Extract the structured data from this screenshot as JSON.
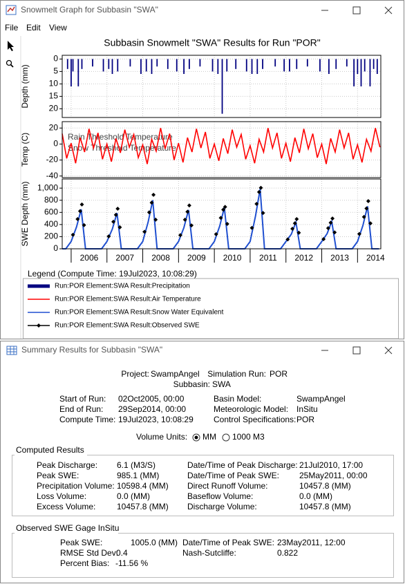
{
  "graph_window": {
    "title": "Snowmelt Graph for Subbasin \"SWA\"",
    "menu": [
      "File",
      "Edit",
      "View"
    ],
    "legend_title": "Legend (Compute Time: 19Jul2023, 10:08:29)"
  },
  "chart_data": [
    {
      "type": "bar",
      "title": "Subbasin Snowmelt \"SWA\" Results for Run \"POR\"",
      "ylabel": "Depth (mm)",
      "xlim": [
        2005.75,
        2014.65
      ],
      "ylim": [
        -1.5,
        23.5
      ],
      "y_inverted": true,
      "yticks": [
        0,
        5,
        10,
        15,
        20
      ],
      "grid": true,
      "series": [
        {
          "name": "Run:POR Element:SWA Result:Precipitation",
          "color": "#000080",
          "x": [
            2005.9,
            2006.0,
            2006.05,
            2006.2,
            2006.3,
            2006.6,
            2006.9,
            2007.05,
            2007.15,
            2007.3,
            2007.65,
            2007.95,
            2008.1,
            2008.25,
            2008.4,
            2008.7,
            2008.95,
            2009.15,
            2009.3,
            2009.6,
            2009.95,
            2010.1,
            2010.22,
            2010.35,
            2010.6,
            2010.9,
            2011.05,
            2011.2,
            2011.35,
            2011.7,
            2011.95,
            2012.1,
            2012.3,
            2012.6,
            2012.95,
            2013.2,
            2013.4,
            2013.7,
            2013.9,
            2014.0,
            2014.1,
            2014.2,
            2014.35,
            2014.45,
            2014.55
          ],
          "values": [
            4,
            11,
            5,
            11,
            4,
            3,
            5,
            4,
            6,
            5,
            3,
            6,
            5,
            6,
            3,
            4,
            5,
            6,
            4,
            3,
            5,
            6,
            22,
            5,
            4,
            5,
            6,
            6,
            4,
            3,
            5,
            5,
            4,
            3,
            5,
            6,
            4,
            3,
            11,
            6,
            11,
            5,
            11,
            4,
            6
          ]
        }
      ]
    },
    {
      "type": "line",
      "ylabel": "Temp (C)",
      "xlim": [
        2005.75,
        2014.65
      ],
      "ylim": [
        -42,
        28
      ],
      "yticks": [
        -40,
        -20,
        0,
        20
      ],
      "grid": true,
      "annotations": [
        "Rain Threshold Temperature",
        "Snow Threshold Temperature"
      ],
      "series": [
        {
          "name": "Run:POR Element:SWA Result:Air Temperature",
          "color": "#ff0000",
          "x": [
            2005.75,
            2005.875,
            2006,
            2006.125,
            2006.25,
            2006.375,
            2006.5,
            2006.625,
            2006.75,
            2006.875,
            2007,
            2007.125,
            2007.25,
            2007.375,
            2007.5,
            2007.625,
            2007.75,
            2007.875,
            2008,
            2008.125,
            2008.25,
            2008.375,
            2008.5,
            2008.625,
            2008.75,
            2008.875,
            2009,
            2009.125,
            2009.25,
            2009.375,
            2009.5,
            2009.625,
            2009.75,
            2009.875,
            2010,
            2010.125,
            2010.25,
            2010.375,
            2010.5,
            2010.625,
            2010.75,
            2010.875,
            2011,
            2011.125,
            2011.25,
            2011.375,
            2011.5,
            2011.625,
            2011.75,
            2011.875,
            2012,
            2012.125,
            2012.25,
            2012.375,
            2012.5,
            2012.625,
            2012.75,
            2012.875,
            2013,
            2013.125,
            2013.25,
            2013.375,
            2013.5,
            2013.625,
            2013.75,
            2013.875,
            2014,
            2014.125,
            2014.25,
            2014.375,
            2014.5,
            2014.625
          ],
          "values": [
            13,
            -18,
            1,
            -24,
            8,
            -10,
            19,
            -5,
            14,
            -19,
            0,
            -22,
            7,
            -11,
            18,
            -4,
            12,
            -17,
            -1,
            -25,
            6,
            -9,
            20,
            -6,
            13,
            -20,
            1,
            -23,
            8,
            -10,
            19,
            -5,
            15,
            -18,
            0,
            -21,
            7,
            -12,
            18,
            -4,
            12,
            -19,
            -2,
            -24,
            6,
            -10,
            20,
            -5,
            14,
            -18,
            1,
            -22,
            8,
            -11,
            19,
            -6,
            13,
            -17,
            0,
            -25,
            7,
            -10,
            18,
            -5,
            14,
            -19,
            -1,
            -23,
            6,
            -9,
            20,
            -4
          ]
        }
      ]
    },
    {
      "type": "line",
      "ylabel": "SWE Depth (mm)",
      "xlim": [
        2005.75,
        2014.65
      ],
      "ylim": [
        0,
        1150
      ],
      "yticks": [
        0,
        200,
        400,
        600,
        800,
        {
          "value": 1000,
          "label": "1,000"
        }
      ],
      "xticks": [
        2006,
        2007,
        2008,
        2009,
        2010,
        2011,
        2012,
        2013,
        2014
      ],
      "grid": true,
      "series": [
        {
          "name": "Run:POR Element:SWA Result:Snow Water Equivalent",
          "color": "#1f4fd0",
          "x": [
            2005.75,
            2005.85,
            2006,
            2006.15,
            2006.28,
            2006.4,
            2006.85,
            2007,
            2007.15,
            2007.28,
            2007.4,
            2007.85,
            2008,
            2008.15,
            2008.28,
            2008.4,
            2008.85,
            2009,
            2009.15,
            2009.28,
            2009.4,
            2009.85,
            2010,
            2010.15,
            2010.28,
            2010.4,
            2010.85,
            2011,
            2011.15,
            2011.28,
            2011.4,
            2011.85,
            2012,
            2012.15,
            2012.28,
            2012.4,
            2012.85,
            2013,
            2013.15,
            2013.28,
            2013.4,
            2013.85,
            2014,
            2014.15,
            2014.28,
            2014.4,
            2014.6
          ],
          "values": [
            0,
            0,
            120,
            360,
            650,
            0,
            0,
            120,
            325,
            590,
            0,
            0,
            120,
            440,
            800,
            0,
            0,
            120,
            350,
            640,
            0,
            0,
            120,
            375,
            680,
            0,
            0,
            120,
            540,
            985,
            0,
            0,
            120,
            240,
            440,
            0,
            0,
            120,
            250,
            450,
            0,
            0,
            120,
            385,
            700,
            0,
            0
          ]
        },
        {
          "name": "Run:POR Element:SWA Result:Observed SWE",
          "color": "#000000",
          "marker": "diamond",
          "line": false,
          "x": [
            2006.05,
            2006.18,
            2006.25,
            2006.3,
            2006.36,
            2007.05,
            2007.18,
            2007.25,
            2007.3,
            2007.36,
            2008.05,
            2008.18,
            2008.25,
            2008.3,
            2008.36,
            2009.05,
            2009.18,
            2009.25,
            2009.3,
            2009.36,
            2010.05,
            2010.18,
            2010.25,
            2010.3,
            2010.36,
            2011.05,
            2011.18,
            2011.25,
            2011.3,
            2011.36,
            2012.05,
            2012.18,
            2012.25,
            2012.3,
            2012.36,
            2013.05,
            2013.18,
            2013.25,
            2013.3,
            2013.36,
            2014.05,
            2014.18,
            2014.25,
            2014.3,
            2014.36
          ],
          "values": [
            230,
            490,
            620,
            730,
            390,
            205,
            445,
            560,
            660,
            355,
            280,
            600,
            760,
            890,
            480,
            225,
            480,
            610,
            715,
            385,
            240,
            510,
            645,
            690,
            410,
            345,
            740,
            935,
            1005,
            590,
            155,
            330,
            420,
            490,
            265,
            160,
            340,
            430,
            500,
            270,
            245,
            525,
            665,
            785,
            420
          ]
        }
      ]
    }
  ],
  "summary_window": {
    "title": "Summary Results for Subbasin \"SWA\"",
    "header": [
      [
        "Project:",
        "SwampAngel",
        "Simulation Run:",
        "POR"
      ],
      [
        "Subbasin:",
        "SWA"
      ]
    ],
    "run_info": [
      [
        "Start of Run:",
        "02Oct2005, 00:00",
        "Basin Model:",
        "SwampAngel"
      ],
      [
        "End of Run:",
        "29Sep2014, 00:00",
        "Meteorologic Model:",
        "InSitu"
      ],
      [
        "Compute Time:",
        "19Jul2023, 10:08:29",
        "Control Specifications:",
        "POR"
      ]
    ],
    "volume_units": {
      "label": "Volume Units:",
      "options": [
        "MM",
        "1000 M3"
      ],
      "selected": 0
    },
    "computed": {
      "title": "Computed Results",
      "rows": [
        [
          "Peak Discharge:",
          "6.1 (M3/S)",
          "Date/Time of Peak Discharge:",
          "21Jul2010, 17:00"
        ],
        [
          "Peak SWE:",
          "985.1 (MM)",
          "Date/Time of Peak SWE:",
          "25May2011, 00:00"
        ],
        [
          "Precipitation Volume:",
          "10598.4 (MM)",
          "Direct Runoff Volume:",
          "10457.8 (MM)"
        ],
        [
          "Loss Volume:",
          "0.0 (MM)",
          "Baseflow Volume:",
          "0.0 (MM)"
        ],
        [
          "Excess Volume:",
          "10457.8 (MM)",
          "Discharge Volume:",
          "10457.8 (MM)"
        ]
      ]
    },
    "observed": {
      "title": "Observed SWE Gage InSitu",
      "rows": [
        [
          "Peak SWE:",
          "1005.0 (MM)",
          "Date/Time of Peak SWE:",
          "23May2011, 12:00"
        ],
        [
          "RMSE Std Dev:",
          "0.4",
          "Nash-Sutcliffe:",
          "0.822"
        ],
        [
          "Percent Bias:",
          "-11.56 %"
        ]
      ]
    }
  }
}
